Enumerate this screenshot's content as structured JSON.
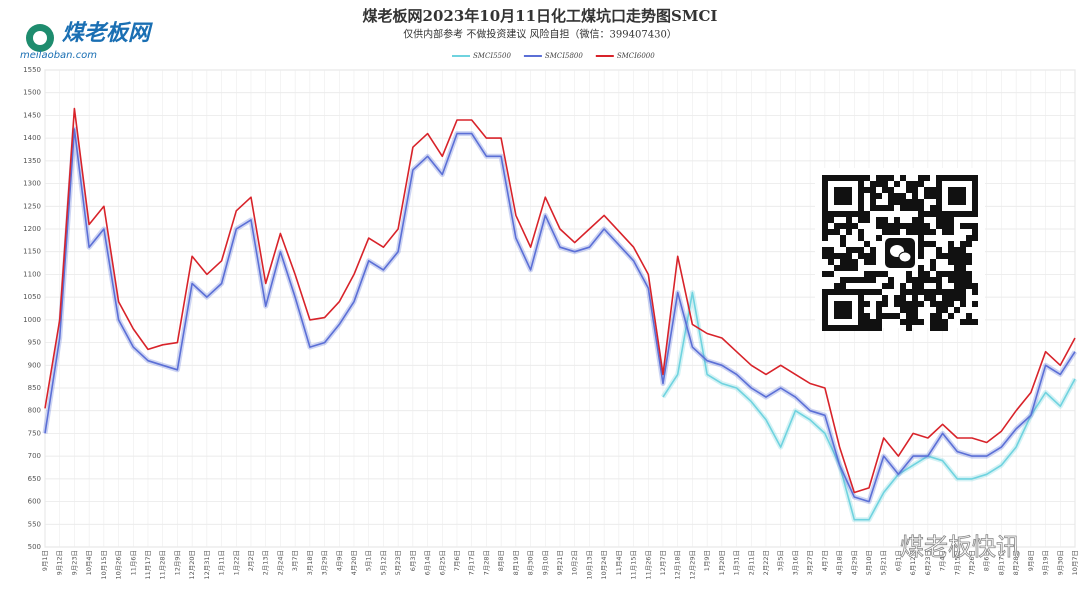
{
  "logo": {
    "name": "煤老板网",
    "url": "meilaoban.com"
  },
  "watermark": "煤老板快讯",
  "chart_data": {
    "type": "line",
    "title": "煤老板网2023年10月11日化工煤坑口走势图SMCI",
    "subtitle": "仅供内部参考 不做投资建议 风险自担（微信：399407430）",
    "categories": [
      "9月1日",
      "9月12日",
      "9月23日",
      "10月4日",
      "10月15日",
      "10月26日",
      "11月6日",
      "11月17日",
      "11月28日",
      "12月9日",
      "12月20日",
      "12月31日",
      "1月11日",
      "1月22日",
      "2月2日",
      "2月13日",
      "2月24日",
      "3月7日",
      "3月18日",
      "3月29日",
      "4月9日",
      "4月20日",
      "5月1日",
      "5月12日",
      "5月23日",
      "6月3日",
      "6月14日",
      "6月25日",
      "7月6日",
      "7月17日",
      "7月28日",
      "8月8日",
      "8月19日",
      "8月30日",
      "9月10日",
      "9月21日",
      "10月2日",
      "10月13日",
      "10月24日",
      "11月4日",
      "11月15日",
      "11月26日",
      "12月7日",
      "12月18日",
      "12月29日",
      "1月9日",
      "1月20日",
      "1月31日",
      "2月11日",
      "2月22日",
      "3月5日",
      "3月16日",
      "3月27日",
      "4月7日",
      "4月18日",
      "4月29日",
      "5月10日",
      "5月21日",
      "6月1日",
      "6月12日",
      "6月23日",
      "7月4日",
      "7月15日",
      "7月26日",
      "8月6日",
      "8月17日",
      "8月28日",
      "9月8日",
      "9月19日",
      "9月30日",
      "10月7日"
    ],
    "series": [
      {
        "name": "SMCI5500",
        "color": "#6fd3df",
        "values": [
          null,
          null,
          null,
          null,
          null,
          null,
          null,
          null,
          null,
          null,
          null,
          null,
          null,
          null,
          null,
          null,
          null,
          null,
          null,
          null,
          null,
          null,
          null,
          null,
          null,
          null,
          null,
          null,
          null,
          null,
          null,
          null,
          null,
          null,
          null,
          null,
          null,
          null,
          null,
          null,
          null,
          null,
          830,
          880,
          1060,
          880,
          860,
          850,
          820,
          780,
          720,
          800,
          780,
          750,
          680,
          560,
          560,
          620,
          660,
          680,
          700,
          690,
          650,
          650,
          660,
          680,
          720,
          790,
          840,
          810,
          870
        ]
      },
      {
        "name": "SMCI5800",
        "color": "#5b6fd6",
        "values": [
          750,
          960,
          1420,
          1160,
          1200,
          1000,
          940,
          910,
          900,
          890,
          1080,
          1050,
          1080,
          1200,
          1220,
          1030,
          1150,
          1050,
          940,
          950,
          990,
          1040,
          1130,
          1110,
          1150,
          1330,
          1360,
          1320,
          1410,
          1410,
          1360,
          1360,
          1180,
          1110,
          1230,
          1160,
          1150,
          1160,
          1200,
          1165,
          1130,
          1070,
          860,
          1060,
          940,
          910,
          900,
          880,
          850,
          830,
          850,
          830,
          800,
          790,
          680,
          610,
          600,
          700,
          660,
          700,
          700,
          750,
          710,
          700,
          700,
          720,
          760,
          790,
          900,
          880,
          930
        ]
      },
      {
        "name": "SMCI6000",
        "color": "#d8232a",
        "values": [
          805,
          1000,
          1465,
          1210,
          1250,
          1040,
          980,
          935,
          945,
          950,
          1140,
          1100,
          1130,
          1240,
          1270,
          1080,
          1190,
          1100,
          1000,
          1005,
          1040,
          1100,
          1180,
          1160,
          1200,
          1380,
          1410,
          1360,
          1440,
          1440,
          1400,
          1400,
          1230,
          1160,
          1270,
          1200,
          1170,
          1200,
          1230,
          1195,
          1160,
          1100,
          880,
          1140,
          990,
          970,
          960,
          930,
          900,
          880,
          900,
          880,
          860,
          850,
          720,
          620,
          630,
          740,
          700,
          750,
          740,
          770,
          740,
          740,
          730,
          755,
          800,
          840,
          930,
          900,
          960
        ]
      }
    ],
    "ylim": [
      500,
      1550
    ],
    "yticks": [
      500,
      550,
      600,
      650,
      700,
      750,
      800,
      850,
      900,
      950,
      1000,
      1050,
      1100,
      1150,
      1200,
      1250,
      1300,
      1350,
      1400,
      1450,
      1500,
      1550
    ],
    "grid": true,
    "legend": "top"
  }
}
